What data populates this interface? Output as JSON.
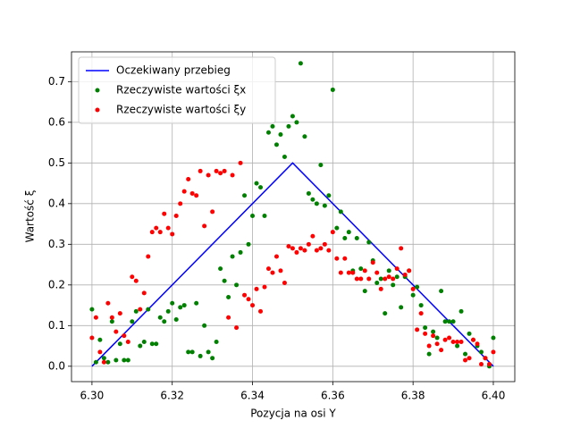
{
  "chart_data": {
    "type": "scatter",
    "xlabel": "Pozycja na osi Y",
    "ylabel": "Wartość ξ",
    "xlim": [
      6.2949,
      6.40535
    ],
    "ylim": [
      -0.0378,
      0.7733
    ],
    "xticks": [
      {
        "value": 6.3,
        "label": "6.30"
      },
      6.32,
      6.34,
      6.36,
      6.38,
      {
        "value": 6.4,
        "label": "6.40"
      }
    ],
    "yticks": [
      {
        "value": 0,
        "label": "0.0"
      },
      0.1,
      0.2,
      0.3,
      0.4,
      0.5,
      0.6,
      0.7
    ],
    "grid": true,
    "legend": "upper left",
    "x": [
      6.3,
      6.301,
      6.302,
      6.303,
      6.304,
      6.305,
      6.306,
      6.307,
      6.308,
      6.309,
      6.31,
      6.311,
      6.312,
      6.313,
      6.314,
      6.315,
      6.316,
      6.317,
      6.318,
      6.319,
      6.32,
      6.321,
      6.322,
      6.323,
      6.324,
      6.325,
      6.326,
      6.327,
      6.328,
      6.329,
      6.33,
      6.331,
      6.332,
      6.333,
      6.334,
      6.335,
      6.336,
      6.337,
      6.338,
      6.339,
      6.34,
      6.341,
      6.342,
      6.343,
      6.344,
      6.345,
      6.346,
      6.347,
      6.348,
      6.349,
      6.35,
      6.351,
      6.352,
      6.353,
      6.354,
      6.355,
      6.356,
      6.357,
      6.358,
      6.359,
      6.36,
      6.361,
      6.362,
      6.363,
      6.364,
      6.365,
      6.366,
      6.367,
      6.368,
      6.369,
      6.37,
      6.371,
      6.372,
      6.373,
      6.374,
      6.375,
      6.376,
      6.377,
      6.378,
      6.379,
      6.38,
      6.381,
      6.382,
      6.383,
      6.384,
      6.385,
      6.386,
      6.387,
      6.388,
      6.389,
      6.39,
      6.391,
      6.392,
      6.393,
      6.394,
      6.395,
      6.396,
      6.397,
      6.398,
      6.399,
      6.4
    ],
    "series": [
      {
        "name": "Oczekiwany przebieg",
        "mode": "line",
        "color": "#0000ff",
        "x": [
          6.3,
          6.35,
          6.4
        ],
        "values": [
          0,
          0.5,
          0
        ]
      },
      {
        "name": "Rzeczywiste wartości ξx",
        "mode": "marker",
        "color": "#008000",
        "values": [
          0.14,
          0.01,
          0.065,
          0.02,
          0.01,
          0.11,
          0.015,
          0.055,
          0.015,
          0.015,
          0.11,
          0.135,
          0.05,
          0.06,
          0.14,
          0.055,
          0.055,
          0.12,
          0.11,
          0.135,
          0.155,
          0.115,
          0.145,
          0.15,
          0.035,
          0.035,
          0.155,
          0.025,
          0.1,
          0.035,
          0.02,
          0.06,
          0.24,
          0.21,
          0.17,
          0.27,
          0.2,
          0.28,
          0.42,
          0.3,
          0.37,
          0.45,
          0.44,
          0.37,
          0.575,
          0.59,
          0.545,
          0.57,
          0.515,
          0.59,
          0.615,
          0.6,
          0.745,
          0.565,
          0.425,
          0.41,
          0.4,
          0.495,
          0.395,
          0.42,
          0.68,
          0.34,
          0.38,
          0.315,
          0.33,
          0.235,
          0.315,
          0.24,
          0.185,
          0.305,
          0.26,
          0.205,
          0.215,
          0.13,
          0.235,
          0.2,
          0.22,
          0.145,
          0.22,
          0.235,
          0.175,
          0.195,
          0.15,
          0.095,
          0.03,
          0.085,
          0.07,
          0.185,
          0.11,
          0.11,
          0.11,
          0.05,
          0.135,
          0.03,
          0.08,
          0.065,
          0.05,
          0.035,
          0.02,
          0.0,
          0.07
        ]
      },
      {
        "name": "Rzeczywiste wartości ξy",
        "mode": "marker",
        "color": "#ff0000",
        "values": [
          0.07,
          0.12,
          0.035,
          0.01,
          0.155,
          0.12,
          0.085,
          0.13,
          0.075,
          0.06,
          0.22,
          0.21,
          0.14,
          0.18,
          0.27,
          0.33,
          0.34,
          0.33,
          0.375,
          0.34,
          0.325,
          0.37,
          0.4,
          0.43,
          0.46,
          0.425,
          0.42,
          0.48,
          0.345,
          0.47,
          0.38,
          0.48,
          0.475,
          0.48,
          0.12,
          0.47,
          0.095,
          0.5,
          0.175,
          0.165,
          0.15,
          0.19,
          0.135,
          0.195,
          0.24,
          0.23,
          0.27,
          0.235,
          0.205,
          0.295,
          0.29,
          0.28,
          0.29,
          0.285,
          0.3,
          0.32,
          0.285,
          0.29,
          0.3,
          0.285,
          0.33,
          0.265,
          0.23,
          0.265,
          0.23,
          0.23,
          0.215,
          0.215,
          0.235,
          0.215,
          0.255,
          0.23,
          0.19,
          0.215,
          0.22,
          0.215,
          0.24,
          0.29,
          0.225,
          0.235,
          0.19,
          0.09,
          0.13,
          0.08,
          0.05,
          0.075,
          0.055,
          0.04,
          0.065,
          0.07,
          0.06,
          0.06,
          0.06,
          0.015,
          0.02,
          0.065,
          0.055,
          0.005,
          0.02,
          0.005,
          0.035
        ]
      }
    ]
  }
}
